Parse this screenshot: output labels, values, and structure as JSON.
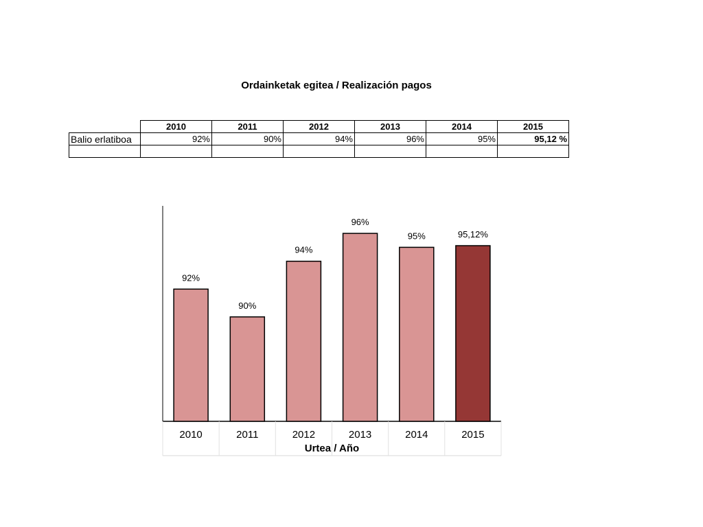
{
  "table": {
    "title": "Ordainketak egitea / Realización pagos",
    "years": [
      "2010",
      "2011",
      "2012",
      "2013",
      "2014",
      "2015"
    ],
    "row_label": "Balio erlatiboa",
    "values": [
      "92%",
      "90%",
      "94%",
      "96%",
      "95%",
      "95,12 %"
    ]
  },
  "chart_data": {
    "type": "bar",
    "title": "",
    "xlabel": "Urtea / Año",
    "ylabel": "",
    "categories": [
      "2010",
      "2011",
      "2012",
      "2013",
      "2014",
      "2015"
    ],
    "values": [
      92,
      90,
      94,
      96,
      95,
      95.12
    ],
    "data_labels": [
      "92%",
      "90%",
      "94%",
      "96%",
      "95%",
      "95,12%"
    ],
    "ylim": [
      82.5,
      96.4
    ],
    "grid": false,
    "legend": "none",
    "colors": {
      "bar": "#d99594",
      "highlight_bar": "#953735",
      "bar_outline": "#000000"
    },
    "highlight_index": 5
  }
}
